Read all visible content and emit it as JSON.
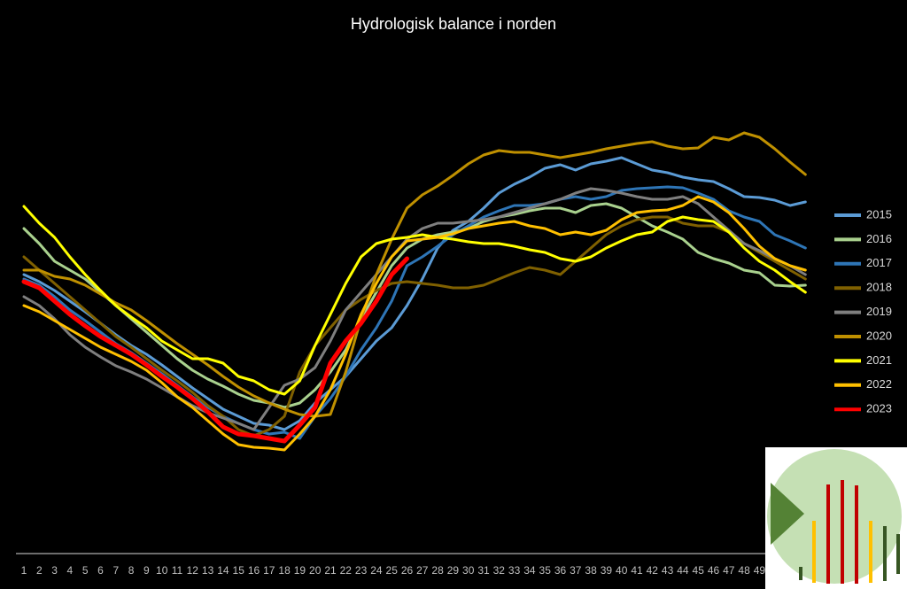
{
  "chart_data": {
    "type": "line",
    "title": "Hydrologisk balance i norden",
    "categories": [
      "1",
      "2",
      "3",
      "4",
      "5",
      "6",
      "7",
      "8",
      "9",
      "10",
      "11",
      "12",
      "13",
      "14",
      "15",
      "16",
      "17",
      "18",
      "19",
      "20",
      "21",
      "22",
      "23",
      "24",
      "25",
      "26",
      "27",
      "28",
      "29",
      "30",
      "31",
      "32",
      "33",
      "34",
      "35",
      "36",
      "37",
      "38",
      "39",
      "40",
      "41",
      "42",
      "43",
      "44",
      "45",
      "46",
      "47",
      "48",
      "49",
      null,
      null,
      null
    ],
    "ylim": [
      0,
      540
    ],
    "legend": "right",
    "series": [
      {
        "name": "2015",
        "color": "#5b9bd5",
        "values": [
          315,
          307,
          297,
          285,
          273,
          260,
          247,
          235,
          225,
          213,
          200,
          187,
          175,
          163,
          155,
          147,
          145,
          140,
          150,
          170,
          185,
          200,
          220,
          240,
          255,
          280,
          310,
          345,
          365,
          375,
          390,
          407,
          417,
          425,
          435,
          439,
          433,
          440,
          443,
          447,
          440,
          433,
          430,
          425,
          422,
          420,
          412,
          403,
          402,
          399,
          393,
          397
        ]
      },
      {
        "name": "2016",
        "color": "#a9d18e",
        "values": [
          367,
          350,
          330,
          320,
          310,
          295,
          280,
          265,
          250,
          235,
          220,
          207,
          197,
          189,
          180,
          173,
          170,
          165,
          170,
          185,
          205,
          230,
          265,
          295,
          325,
          345,
          355,
          360,
          363,
          367,
          375,
          380,
          383,
          387,
          390,
          390,
          385,
          393,
          395,
          390,
          380,
          370,
          363,
          355,
          340,
          333,
          328,
          320,
          317,
          303,
          302,
          303
        ]
      },
      {
        "name": "2017",
        "color": "#2e75b6",
        "values": [
          310,
          303,
          290,
          275,
          263,
          250,
          237,
          227,
          215,
          203,
          190,
          177,
          165,
          155,
          147,
          140,
          135,
          137,
          130,
          155,
          175,
          200,
          230,
          255,
          285,
          325,
          335,
          347,
          360,
          370,
          380,
          387,
          393,
          393,
          395,
          400,
          403,
          400,
          403,
          410,
          412,
          413,
          414,
          413,
          407,
          400,
          387,
          380,
          375,
          360,
          353,
          345
        ]
      },
      {
        "name": "2018",
        "color": "#7f6000",
        "values": [
          335,
          320,
          305,
          290,
          275,
          260,
          245,
          233,
          220,
          207,
          195,
          182,
          167,
          155,
          140,
          133,
          140,
          155,
          205,
          235,
          255,
          275,
          287,
          297,
          305,
          307,
          305,
          303,
          300,
          300,
          303,
          310,
          317,
          323,
          320,
          315,
          330,
          345,
          360,
          370,
          377,
          380,
          380,
          373,
          370,
          370,
          363,
          350,
          340,
          330,
          320,
          310
        ]
      },
      {
        "name": "2019",
        "color": "#7f7f7f",
        "values": [
          290,
          280,
          265,
          247,
          233,
          222,
          212,
          205,
          197,
          187,
          177,
          167,
          159,
          153,
          147,
          140,
          165,
          190,
          197,
          210,
          240,
          275,
          295,
          315,
          335,
          355,
          367,
          373,
          373,
          375,
          377,
          380,
          385,
          390,
          395,
          400,
          407,
          412,
          410,
          407,
          403,
          400,
          400,
          403,
          395,
          380,
          365,
          350,
          342,
          333,
          325,
          315
        ]
      },
      {
        "name": "2020",
        "color": "#bf9000",
        "values": [
          320,
          320,
          313,
          310,
          303,
          293,
          283,
          275,
          263,
          250,
          237,
          225,
          213,
          200,
          188,
          178,
          170,
          163,
          157,
          155,
          157,
          205,
          265,
          315,
          355,
          390,
          405,
          415,
          427,
          440,
          450,
          455,
          453,
          453,
          450,
          447,
          450,
          453,
          457,
          460,
          463,
          465,
          460,
          457,
          458,
          470,
          467,
          475,
          470,
          457,
          442,
          428
        ]
      },
      {
        "name": "2021",
        "color": "#ffff00",
        "values": [
          392,
          373,
          357,
          335,
          315,
          297,
          280,
          267,
          255,
          240,
          230,
          220,
          220,
          215,
          200,
          195,
          185,
          180,
          195,
          235,
          270,
          305,
          335,
          350,
          355,
          357,
          360,
          357,
          355,
          352,
          350,
          350,
          347,
          343,
          340,
          333,
          330,
          335,
          345,
          353,
          360,
          363,
          375,
          380,
          377,
          375,
          363,
          345,
          330,
          320,
          307,
          295
        ]
      },
      {
        "name": "2022",
        "color": "#ffc000",
        "values": [
          280,
          273,
          263,
          253,
          243,
          233,
          225,
          217,
          207,
          193,
          177,
          165,
          150,
          135,
          123,
          120,
          119,
          117,
          135,
          155,
          185,
          225,
          270,
          305,
          335,
          353,
          355,
          357,
          361,
          367,
          370,
          373,
          375,
          370,
          367,
          360,
          363,
          360,
          365,
          377,
          385,
          387,
          388,
          393,
          403,
          397,
          385,
          367,
          347,
          333,
          325,
          320
        ]
      },
      {
        "name": "2023",
        "color": "#ff0000",
        "values": [
          307,
          300,
          285,
          270,
          257,
          245,
          235,
          225,
          213,
          200,
          188,
          175,
          160,
          143,
          135,
          133,
          130,
          127,
          145,
          165,
          215,
          240,
          260,
          285,
          315,
          333,
          null,
          null,
          null,
          null,
          null,
          null,
          null,
          null,
          null,
          null,
          null,
          null,
          null,
          null,
          null,
          null,
          null,
          null,
          null,
          null,
          null,
          null,
          null,
          null,
          null,
          null
        ]
      }
    ]
  }
}
